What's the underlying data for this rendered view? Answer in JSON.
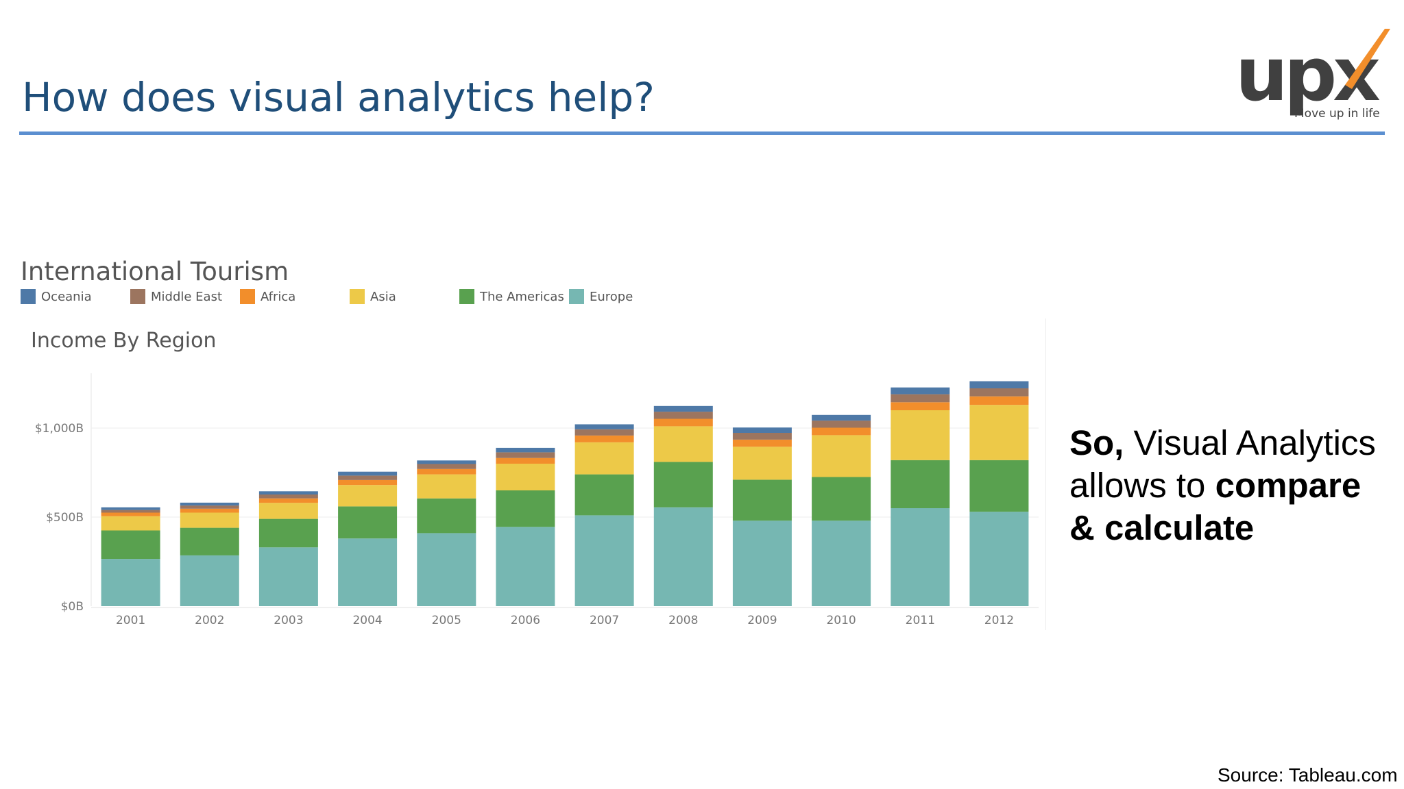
{
  "slide": {
    "title": "How does visual analytics help?",
    "logo": {
      "word": "upx",
      "tagline": "Move up in life"
    },
    "callout": {
      "lead": "So,",
      "part1": " Visual Analytics allows to ",
      "bold1": "compare",
      "bold2": "& calculate"
    },
    "source": "Source: Tableau.com"
  },
  "dashboard": {
    "title": "International Tourism"
  },
  "colors": {
    "Oceania": "#4e79a7",
    "Middle East": "#9c755f",
    "Africa": "#f28e2b",
    "Asia": "#edc948",
    "The Americas": "#59a14f",
    "Europe": "#76b7b2",
    "title": "#1f4e79",
    "rule": "#5b8fd0",
    "logo_accent": "#f28e2b"
  },
  "chart_data": {
    "type": "bar",
    "stacked": true,
    "title": "Income By Region",
    "xlabel": "",
    "ylabel": "",
    "categories": [
      "2001",
      "2002",
      "2003",
      "2004",
      "2005",
      "2006",
      "2007",
      "2008",
      "2009",
      "2010",
      "2011",
      "2012"
    ],
    "y_ticks": [
      {
        "value": 0,
        "label": "$0B"
      },
      {
        "value": 500,
        "label": "$500B"
      },
      {
        "value": 1000,
        "label": "$1,000B"
      }
    ],
    "ylim": [
      0,
      1280
    ],
    "grid": true,
    "legend_position": "top-left",
    "legend": [
      "Oceania",
      "Middle East",
      "Africa",
      "Asia",
      "The Americas",
      "Europe"
    ],
    "series": [
      {
        "name": "Europe",
        "values": [
          265,
          285,
          330,
          380,
          410,
          445,
          510,
          555,
          480,
          480,
          550,
          530
        ]
      },
      {
        "name": "The Americas",
        "values": [
          160,
          155,
          160,
          180,
          195,
          205,
          230,
          255,
          230,
          245,
          270,
          290
        ]
      },
      {
        "name": "Asia",
        "values": [
          80,
          85,
          90,
          120,
          135,
          150,
          180,
          200,
          185,
          235,
          280,
          310
        ]
      },
      {
        "name": "Africa",
        "values": [
          20,
          22,
          25,
          28,
          30,
          32,
          38,
          42,
          40,
          42,
          45,
          48
        ]
      },
      {
        "name": "Middle East",
        "values": [
          15,
          18,
          22,
          25,
          28,
          32,
          35,
          40,
          38,
          40,
          45,
          45
        ]
      },
      {
        "name": "Oceania",
        "values": [
          15,
          16,
          18,
          22,
          20,
          25,
          28,
          32,
          30,
          32,
          38,
          40
        ]
      }
    ]
  }
}
